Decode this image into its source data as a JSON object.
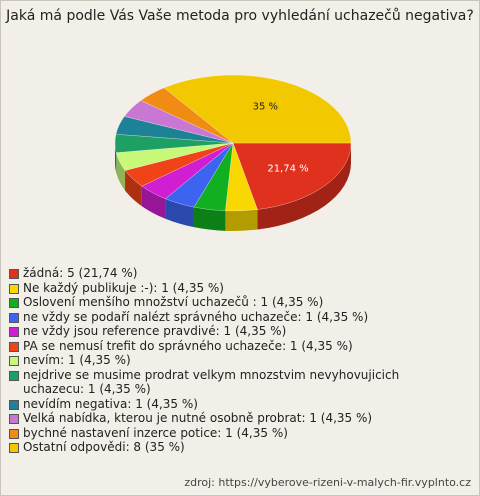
{
  "chart_data": {
    "type": "pie",
    "title": "Jaká má podle Vás Vaše metoda pro vyhledání uchazečů negativa?",
    "categories": [
      "žádná: 5 (21,74 %)",
      "Ne každý publikuje :-): 1 (4,35 %)",
      " Oslovení menšího množství uchazečů : 1 (4,35 %)",
      "ne vždy se podaří nalézt správného uchazeče: 1 (4,35 %)",
      "ne vždy jsou reference pravdivé: 1 (4,35 %)",
      "PA se nemusí trefit do správného uchazeče: 1 (4,35 %)",
      "nevím: 1 (4,35 %)",
      "nejdrive se musime prodrat velkym mnozstvim nevyhovujicich uchazecu: 1 (4,35 %)",
      "nevídím negativa: 1 (4,35 %)",
      "Velká nabídka, kterou je nutné osobně probrat: 1 (4,35 %)",
      "bychné nastavení inzerce potice: 1 (4,35 %)",
      "Ostatní odpovědi: 8 (35 %)"
    ],
    "values": [
      21.74,
      4.35,
      4.35,
      4.35,
      4.35,
      4.35,
      4.35,
      4.35,
      4.35,
      4.35,
      4.35,
      35
    ],
    "value_labels": [
      "21,74 %",
      null,
      null,
      null,
      null,
      null,
      null,
      null,
      null,
      null,
      null,
      "35 %"
    ],
    "colors": [
      "#e0301e",
      "#f8d800",
      "#10b020",
      "#3c64f0",
      "#d21ed2",
      "#f04418",
      "#c8f878",
      "#1ea064",
      "#1e8296",
      "#c878d2",
      "#f08c14",
      "#f2c800"
    ],
    "source": "zdroj: https://vyberove-rizeni-v-malych-fir.vyplnto.cz"
  }
}
